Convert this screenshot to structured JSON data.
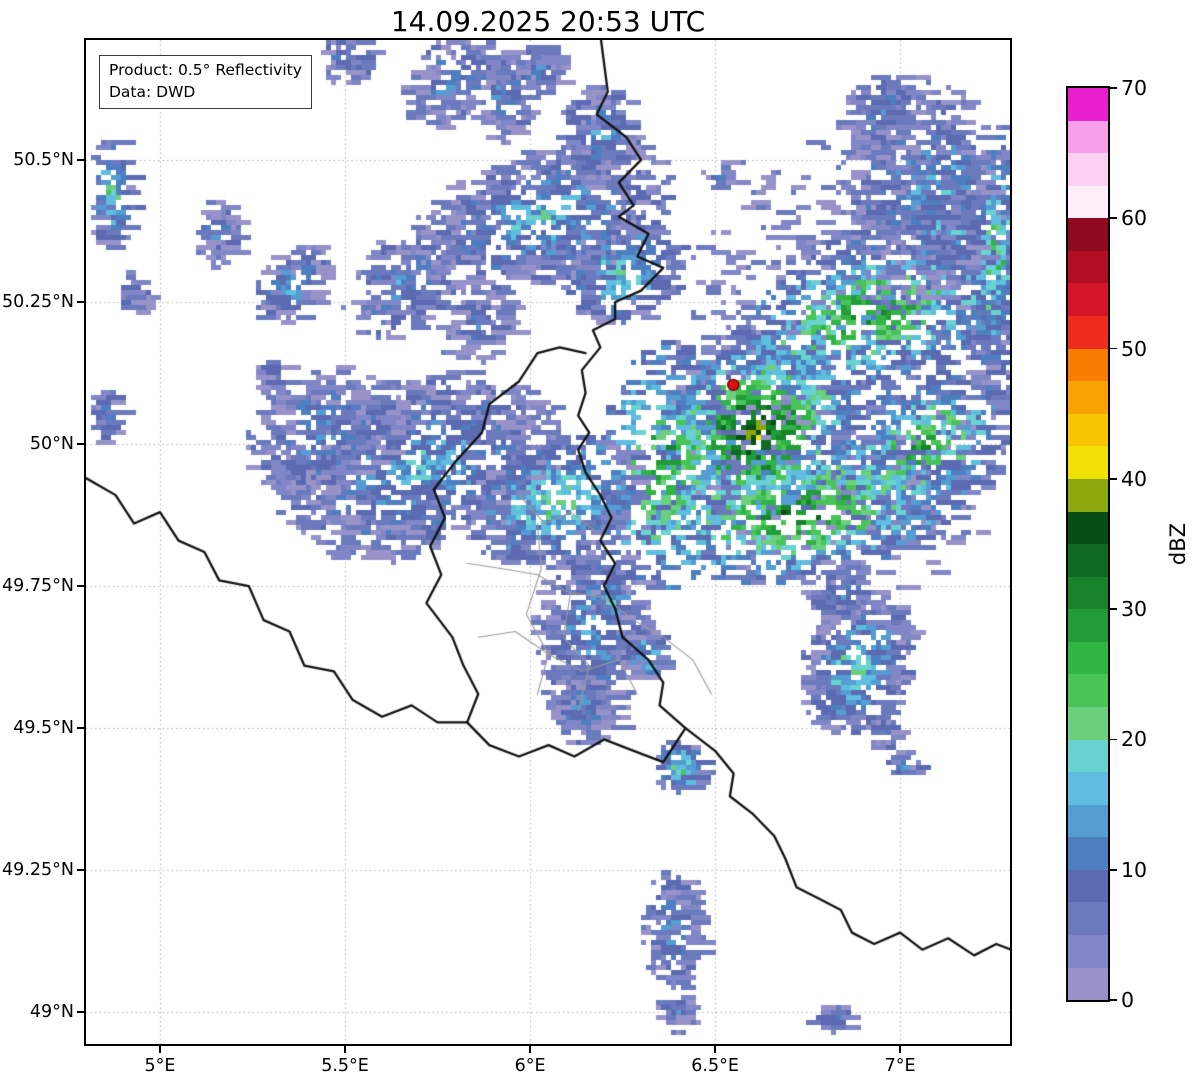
{
  "title": "14.09.2025 20:53 UTC",
  "info_box": {
    "product": "Product: 0.5° Reflectivity",
    "source": "Data: DWD"
  },
  "axes": {
    "lon_min": 4.8,
    "lon_max": 7.297,
    "lat_min": 48.944,
    "lat_max": 50.711,
    "x_ticks": [
      {
        "value": 5.0,
        "label": "5°E"
      },
      {
        "value": 5.5,
        "label": "5.5°E"
      },
      {
        "value": 6.0,
        "label": "6°E"
      },
      {
        "value": 6.5,
        "label": "6.5°E"
      },
      {
        "value": 7.0,
        "label": "7°E"
      }
    ],
    "y_ticks": [
      {
        "value": 50.5,
        "label": "50.5°N"
      },
      {
        "value": 50.25,
        "label": "50.25°N"
      },
      {
        "value": 50.0,
        "label": "50°N"
      },
      {
        "value": 49.75,
        "label": "49.75°N"
      },
      {
        "value": 49.5,
        "label": "49.5°N"
      },
      {
        "value": 49.25,
        "label": "49.25°N"
      },
      {
        "value": 49.0,
        "label": "49°N"
      }
    ],
    "grid_color": "#b5b5b5"
  },
  "colorbar": {
    "label": "dBZ",
    "min": 0,
    "max": 70,
    "ticks": [
      0,
      10,
      20,
      30,
      40,
      50,
      60,
      70
    ],
    "colors": [
      "#9793c9",
      "#8187c6",
      "#6b79bd",
      "#5b6ab1",
      "#4d7fc0",
      "#539dd2",
      "#5fbde0",
      "#68d3cf",
      "#6ad07d",
      "#49c457",
      "#30b445",
      "#219c37",
      "#17832b",
      "#0e6a21",
      "#074e14",
      "#8aa80c",
      "#f0e207",
      "#f6c605",
      "#f8a303",
      "#f87d00",
      "#ee2d1e",
      "#d51629",
      "#b30e24",
      "#8f0a1e",
      "#fdeffa",
      "#fbd0f3",
      "#f79fe8",
      "#ea1fd0"
    ]
  },
  "map": {
    "border_color": "#111111",
    "gray_color": "#9a9a9a",
    "radar_site": {
      "lon": 6.549,
      "lat": 50.104,
      "color": "#dd1111",
      "edge": "#7a0000"
    },
    "black_borders": [
      [
        [
          6.19,
          50.72
        ],
        [
          6.21,
          50.62
        ],
        [
          6.18,
          50.58
        ],
        [
          6.26,
          50.54
        ],
        [
          6.3,
          50.5
        ],
        [
          6.24,
          50.46
        ],
        [
          6.28,
          50.42
        ],
        [
          6.24,
          50.4
        ],
        [
          6.32,
          50.37
        ],
        [
          6.29,
          50.33
        ],
        [
          6.36,
          50.31
        ],
        [
          6.3,
          50.27
        ],
        [
          6.23,
          50.25
        ],
        [
          6.23,
          50.22
        ],
        [
          6.17,
          50.2
        ],
        [
          6.19,
          50.17
        ],
        [
          6.14,
          50.13
        ],
        [
          6.15,
          50.09
        ],
        [
          6.13,
          50.05
        ],
        [
          6.16,
          50.02
        ],
        [
          6.13,
          49.99
        ],
        [
          6.15,
          49.95
        ],
        [
          6.19,
          49.91
        ],
        [
          6.22,
          49.87
        ],
        [
          6.19,
          49.83
        ],
        [
          6.23,
          49.79
        ],
        [
          6.2,
          49.75
        ],
        [
          6.23,
          49.71
        ],
        [
          6.25,
          49.66
        ],
        [
          6.32,
          49.62
        ],
        [
          6.36,
          49.58
        ],
        [
          6.35,
          49.54
        ],
        [
          6.42,
          49.5
        ],
        [
          6.5,
          49.46
        ],
        [
          6.55,
          49.42
        ],
        [
          6.54,
          49.38
        ],
        [
          6.6,
          49.35
        ],
        [
          6.66,
          49.31
        ],
        [
          6.69,
          49.27
        ],
        [
          6.72,
          49.22
        ],
        [
          6.78,
          49.2
        ],
        [
          6.84,
          49.18
        ],
        [
          6.87,
          49.14
        ],
        [
          6.93,
          49.12
        ],
        [
          7.0,
          49.14
        ],
        [
          7.06,
          49.11
        ],
        [
          7.13,
          49.13
        ],
        [
          7.2,
          49.1
        ],
        [
          7.26,
          49.12
        ],
        [
          7.3,
          49.11
        ]
      ],
      [
        [
          6.15,
          50.16
        ],
        [
          6.08,
          50.17
        ],
        [
          6.02,
          50.16
        ],
        [
          5.97,
          50.11
        ],
        [
          5.89,
          50.07
        ],
        [
          5.87,
          50.02
        ],
        [
          5.8,
          49.97
        ],
        [
          5.74,
          49.92
        ],
        [
          5.77,
          49.87
        ],
        [
          5.73,
          49.82
        ],
        [
          5.76,
          49.77
        ],
        [
          5.72,
          49.72
        ],
        [
          5.79,
          49.66
        ],
        [
          5.82,
          49.61
        ],
        [
          5.86,
          49.56
        ],
        [
          5.83,
          49.51
        ],
        [
          5.89,
          49.47
        ],
        [
          5.97,
          49.45
        ],
        [
          6.05,
          49.47
        ],
        [
          6.12,
          49.45
        ],
        [
          6.2,
          49.48
        ],
        [
          6.28,
          49.46
        ],
        [
          6.36,
          49.44
        ],
        [
          6.42,
          49.5
        ]
      ],
      [
        [
          4.8,
          49.94
        ],
        [
          4.88,
          49.91
        ],
        [
          4.93,
          49.86
        ],
        [
          5.0,
          49.88
        ],
        [
          5.05,
          49.83
        ],
        [
          5.12,
          49.81
        ],
        [
          5.16,
          49.76
        ],
        [
          5.24,
          49.75
        ],
        [
          5.28,
          49.69
        ],
        [
          5.35,
          49.67
        ],
        [
          5.39,
          49.61
        ],
        [
          5.47,
          49.6
        ],
        [
          5.52,
          49.55
        ],
        [
          5.6,
          49.52
        ],
        [
          5.68,
          49.54
        ],
        [
          5.75,
          49.51
        ],
        [
          5.83,
          49.51
        ]
      ]
    ],
    "gray_borders": [
      [
        [
          5.97,
          49.91
        ],
        [
          6.04,
          49.86
        ],
        [
          6.11,
          49.88
        ],
        [
          6.19,
          49.84
        ]
      ],
      [
        [
          5.83,
          49.79
        ],
        [
          5.93,
          49.78
        ],
        [
          6.02,
          49.77
        ],
        [
          6.1,
          49.74
        ],
        [
          6.2,
          49.73
        ]
      ],
      [
        [
          6.02,
          49.86
        ],
        [
          6.03,
          49.78
        ],
        [
          5.99,
          49.7
        ],
        [
          6.05,
          49.63
        ],
        [
          6.02,
          49.56
        ]
      ],
      [
        [
          6.11,
          49.74
        ],
        [
          6.09,
          49.66
        ],
        [
          6.16,
          49.61
        ],
        [
          6.13,
          49.53
        ]
      ],
      [
        [
          5.86,
          49.66
        ],
        [
          5.96,
          49.67
        ],
        [
          6.05,
          49.63
        ],
        [
          6.14,
          49.6
        ],
        [
          6.24,
          49.62
        ],
        [
          6.29,
          49.56
        ]
      ],
      [
        [
          6.2,
          49.73
        ],
        [
          6.28,
          49.69
        ],
        [
          6.36,
          49.66
        ],
        [
          6.44,
          49.62
        ],
        [
          6.49,
          49.56
        ]
      ]
    ]
  },
  "radar_echoes": {
    "seed": 20250914,
    "cell": 5,
    "blobs": [
      [
        6.9,
        50.15,
        0.55,
        0.42,
        15,
        11,
        1,
        1600
      ],
      [
        6.92,
        50.23,
        0.4,
        0.12,
        10,
        32,
        8,
        700
      ],
      [
        7.12,
        50.43,
        0.1,
        0.15,
        10,
        24,
        5,
        300
      ],
      [
        7.25,
        50.34,
        0.06,
        0.22,
        -5,
        26,
        6,
        300
      ],
      [
        7.05,
        50.45,
        0.22,
        0.2,
        0,
        12,
        2,
        500
      ],
      [
        6.95,
        50.58,
        0.12,
        0.07,
        15,
        11,
        2,
        160
      ],
      [
        6.6,
        50.02,
        0.28,
        0.16,
        10,
        40,
        10,
        780
      ],
      [
        7.05,
        49.99,
        0.25,
        0.12,
        15,
        30,
        7,
        450
      ],
      [
        6.73,
        49.88,
        0.45,
        0.12,
        5,
        33,
        8,
        700
      ],
      [
        6.36,
        49.96,
        0.18,
        0.22,
        -8,
        30,
        8,
        450
      ],
      [
        6.03,
        50.4,
        0.36,
        0.12,
        8,
        17,
        2,
        820
      ],
      [
        6.25,
        50.3,
        0.16,
        0.09,
        10,
        20,
        4,
        280
      ],
      [
        6.19,
        50.54,
        0.12,
        0.09,
        0,
        13,
        2,
        220
      ],
      [
        5.92,
        50.61,
        0.09,
        0.08,
        0,
        12,
        2,
        160
      ],
      [
        6.02,
        50.66,
        0.07,
        0.05,
        0,
        11,
        2,
        90
      ],
      [
        5.78,
        50.64,
        0.14,
        0.08,
        20,
        11,
        2,
        200
      ],
      [
        5.5,
        50.68,
        0.08,
        0.05,
        0,
        10,
        2,
        80
      ],
      [
        6.52,
        50.47,
        0.05,
        0.03,
        0,
        9,
        2,
        40
      ],
      [
        4.87,
        50.44,
        0.06,
        0.1,
        0,
        22,
        4,
        140
      ],
      [
        5.15,
        50.37,
        0.06,
        0.06,
        0,
        12,
        2,
        80
      ],
      [
        5.35,
        50.28,
        0.11,
        0.06,
        25,
        14,
        3,
        140
      ],
      [
        5.65,
        50.28,
        0.16,
        0.09,
        20,
        12,
        2,
        230
      ],
      [
        5.86,
        50.21,
        0.11,
        0.07,
        15,
        10,
        2,
        130
      ],
      [
        4.92,
        50.26,
        0.04,
        0.04,
        0,
        8,
        2,
        40
      ],
      [
        5.3,
        50.12,
        0.05,
        0.03,
        0,
        8,
        2,
        36
      ],
      [
        4.85,
        50.05,
        0.04,
        0.05,
        0,
        14,
        3,
        60
      ],
      [
        5.7,
        49.96,
        0.4,
        0.16,
        8,
        16,
        2,
        1200
      ],
      [
        5.45,
        50.02,
        0.24,
        0.11,
        10,
        12,
        2,
        450
      ],
      [
        6.06,
        49.9,
        0.24,
        0.11,
        10,
        22,
        5,
        450
      ],
      [
        6.16,
        49.66,
        0.15,
        0.2,
        -5,
        14,
        2,
        560
      ],
      [
        6.13,
        49.54,
        0.08,
        0.07,
        0,
        12,
        2,
        140
      ],
      [
        6.3,
        49.63,
        0.06,
        0.05,
        0,
        20,
        4,
        80
      ],
      [
        6.22,
        49.72,
        0.05,
        0.04,
        0,
        19,
        4,
        60
      ],
      [
        6.88,
        49.61,
        0.16,
        0.12,
        25,
        20,
        3,
        480
      ],
      [
        6.84,
        49.74,
        0.09,
        0.05,
        15,
        12,
        2,
        100
      ],
      [
        6.4,
        49.43,
        0.07,
        0.045,
        0,
        24,
        5,
        100
      ],
      [
        7.01,
        49.44,
        0.05,
        0.025,
        0,
        16,
        4,
        36
      ],
      [
        6.95,
        49.49,
        0.04,
        0.03,
        0,
        10,
        2,
        36
      ],
      [
        6.38,
        49.14,
        0.08,
        0.11,
        0,
        12,
        2,
        230
      ],
      [
        6.39,
        49.0,
        0.05,
        0.035,
        0,
        10,
        2,
        46
      ],
      [
        6.81,
        48.99,
        0.06,
        0.025,
        0,
        12,
        2,
        50
      ]
    ]
  }
}
